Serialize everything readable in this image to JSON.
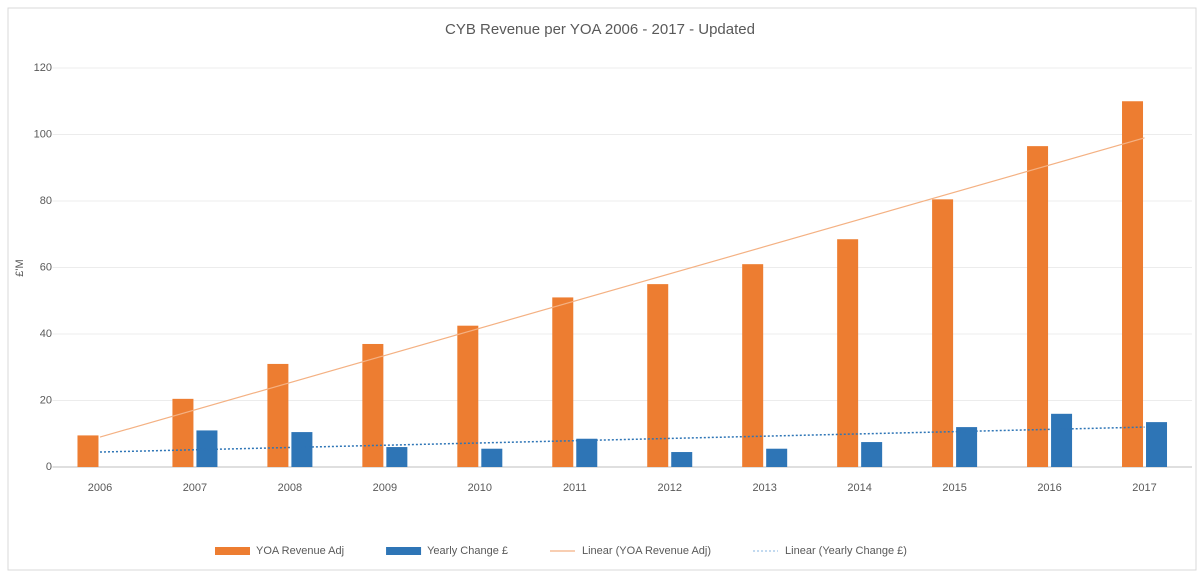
{
  "chart_data": {
    "type": "bar",
    "title": "CYB Revenue per YOA 2006 - 2017 - Updated",
    "y_label": "£'M",
    "categories": [
      "2006",
      "2007",
      "2008",
      "2009",
      "2010",
      "2011",
      "2012",
      "2013",
      "2014",
      "2015",
      "2016",
      "2017"
    ],
    "series": [
      {
        "name": "YOA Revenue Adj",
        "color": "#ed7d31",
        "values": [
          9.5,
          20.5,
          31,
          37,
          42.5,
          51,
          55,
          61,
          68.5,
          80.5,
          96.5,
          110
        ]
      },
      {
        "name": "Yearly Change £",
        "color": "#2e75b6",
        "values": [
          null,
          11,
          10.5,
          6,
          5.5,
          8.5,
          4.5,
          5.5,
          7.5,
          12,
          16,
          13.5
        ]
      }
    ],
    "trendlines": [
      {
        "name": "Linear (YOA Revenue Adj)",
        "color": "#f4b183",
        "dash": false,
        "values": [
          9,
          99
        ]
      },
      {
        "name": "Linear (Yearly Change £)",
        "color": "#2e75b6",
        "dash": true,
        "values": [
          4.5,
          12
        ]
      }
    ],
    "ylim": [
      0,
      120
    ],
    "yticks": [
      0,
      20,
      40,
      60,
      80,
      100,
      120
    ],
    "grid": true,
    "legend": "bottom"
  }
}
